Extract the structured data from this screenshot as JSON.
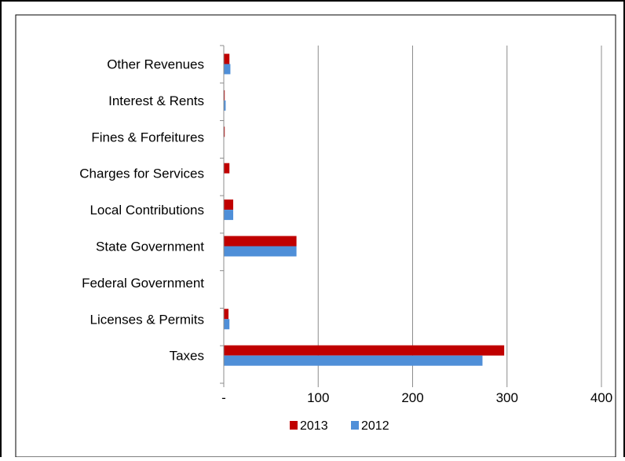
{
  "chart_data": {
    "type": "bar",
    "orientation": "horizontal",
    "title": "",
    "xlabel": "",
    "ylabel": "",
    "categories": [
      "Other Revenues",
      "Interest & Rents",
      "Fines & Forfeitures",
      "Charges for Services",
      "Local Contributions",
      "State Government",
      "Federal Government",
      "Licenses & Permits",
      "Taxes"
    ],
    "series": [
      {
        "name": "2013",
        "color": "#c00000",
        "values": [
          6,
          1,
          1,
          6,
          10,
          77,
          0,
          5,
          297
        ]
      },
      {
        "name": "2012",
        "color": "#4f8fd8",
        "values": [
          7,
          2,
          0,
          0,
          10,
          77,
          0,
          6,
          274
        ]
      }
    ],
    "xlim": [
      0,
      400
    ],
    "x_ticks": [
      0,
      100,
      200,
      300,
      400
    ],
    "x_tick_labels": [
      "-",
      "100",
      "200",
      "300",
      "400"
    ],
    "grid": "vertical",
    "legend_position": "bottom"
  }
}
